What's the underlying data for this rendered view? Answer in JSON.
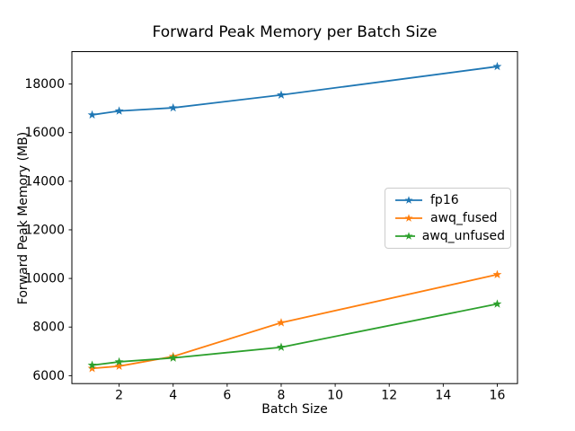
{
  "chart_data": {
    "type": "line",
    "title": "Forward Peak Memory per Batch Size",
    "xlabel": "Batch Size",
    "ylabel": "Forward Peak Memory (MB)",
    "x": [
      1,
      2,
      4,
      8,
      16
    ],
    "series": [
      {
        "name": "fp16",
        "color": "#1f77b4",
        "values": [
          16730,
          16890,
          17020,
          17550,
          18720
        ]
      },
      {
        "name": "awq_fused",
        "color": "#ff7f0e",
        "values": [
          6300,
          6390,
          6790,
          8180,
          10160
        ]
      },
      {
        "name": "awq_unfused",
        "color": "#2ca02c",
        "values": [
          6430,
          6570,
          6730,
          7170,
          8950
        ]
      }
    ],
    "marker": "star",
    "xticks": [
      2,
      4,
      6,
      8,
      10,
      12,
      14,
      16
    ],
    "yticks": [
      6000,
      8000,
      10000,
      12000,
      14000,
      16000,
      18000
    ],
    "xlim": [
      0.25,
      16.75
    ],
    "ylim": [
      5674,
      19332
    ],
    "grid": false,
    "legend_position": "center-right",
    "background_color": "#ffffff",
    "spine_color": "#000000"
  }
}
